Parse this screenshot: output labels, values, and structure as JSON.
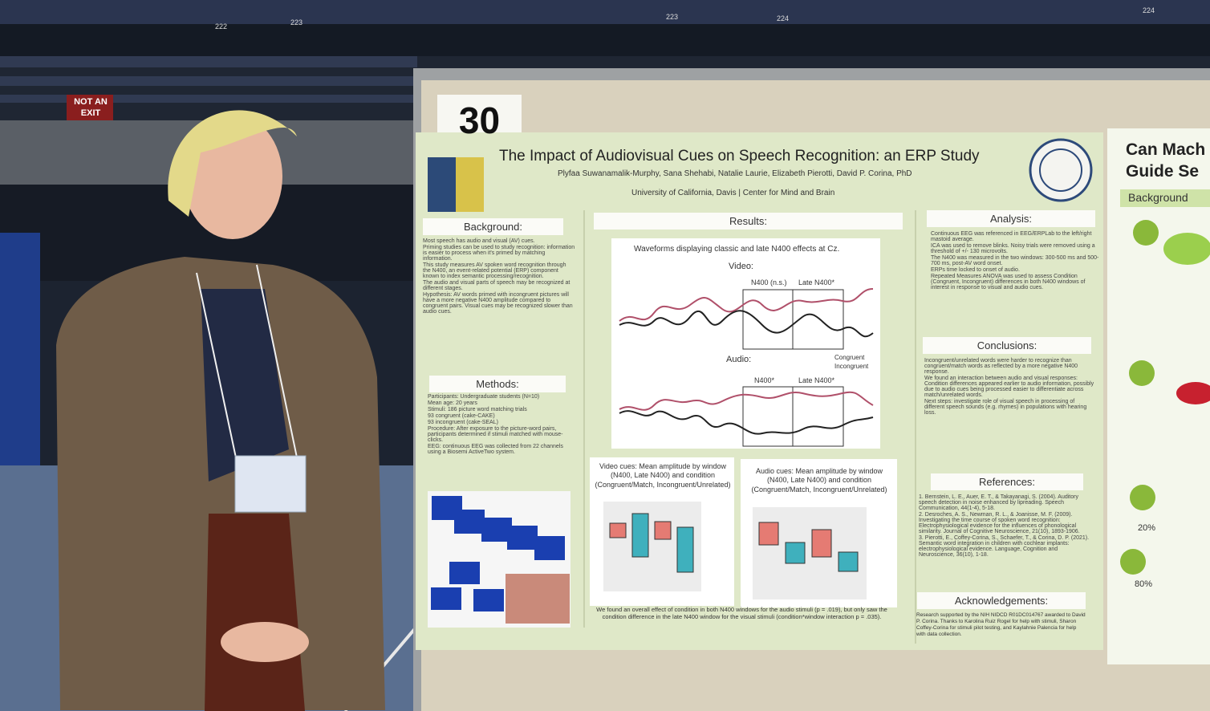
{
  "arena": {
    "exit_sign": "NOT AN EXIT",
    "section_numbers": [
      "222",
      "223",
      "223",
      "224",
      "224"
    ]
  },
  "board_number": "30",
  "poster": {
    "title": "The Impact of Audiovisual Cues on Speech Recognition: an ERP Study",
    "authors": "Plyfaa Suwanamalik-Murphy,  Sana Shehabi,  Natalie Laurie,  Elizabeth Pierotti,  David P. Corina, PhD",
    "affiliation": "University of California, Davis | Center for Mind and Brain",
    "background": {
      "heading": "Background:",
      "bullets": [
        "Most speech has audio and visual (AV) cues.",
        "Priming studies can be used to study recognition: information is easier to process when it's primed by matching information.",
        "This study measures AV spoken word recognition through the N400, an event-related potential (ERP) component known to index semantic processing/recognition.",
        "The audio and visual parts of speech may be recognized at different stages.",
        "Hypothesis: AV words primed with incongruent pictures will have a more negative N400 amplitude compared to congruent pairs. Visual cues may be recognized slower than audio cues."
      ]
    },
    "methods": {
      "heading": "Methods:",
      "items": [
        "Participants: Undergraduate students (N=10)",
        "Mean age: 20 years",
        "Stimuli: 186 picture word matching trials",
        "93 congruent (cake-CAKE)",
        "93 incongruent (cake-SEAL)",
        "Procedure: After exposure to the picture-word pairs, participants determined if stimuli matched with mouse-clicks.",
        "EEG: continuous EEG was collected from 22 channels using a Biosemi ActiveTwo system."
      ]
    },
    "results": {
      "heading": "Results:",
      "figure_title": "Waveforms displaying classic and late N400 effects at Cz.",
      "video_label": "Video:",
      "audio_label": "Audio:",
      "video_windows": [
        "N400 (n.s.)",
        "Late N400*"
      ],
      "audio_windows": [
        "N400*",
        "Late N400*"
      ],
      "legend": [
        "Congruent",
        "Incongruent"
      ],
      "video_cues": "Video cues: Mean amplitude by window (N400, Late N400) and condition (Congruent/Match, Incongruent/Unrelated)",
      "audio_cues": "Audio cues: Mean amplitude by window (N400, Late N400) and condition (Congruent/Match, Incongruent/Unrelated)",
      "summary": "We found an overall effect of condition in both N400 windows for the audio stimuli (p = .019), but only saw the condition difference in the late N400 window for the visual stimuli (condition*window interaction p = .035)."
    },
    "analysis": {
      "heading": "Analysis:",
      "bullets": [
        "Continuous EEG was referenced in EEG/ERPLab to the left/right mastoid average.",
        "ICA was used to remove blinks. Noisy trials were removed using a threshold of +/- 130 microvolts.",
        "The N400 was measured in the two windows: 300-500 ms and 500-700 ms, post-AV word onset.",
        "ERPs time locked to onset of audio.",
        "Repeated Measures ANOVA was used to assess Condition (Congruent, Incongruent) differences in both N400 windows of interest in response to visual and audio cues."
      ]
    },
    "conclusions": {
      "heading": "Conclusions:",
      "bullets": [
        "Incongruent/unrelated words were harder to recognize than congruent/match words as reflected by a more negative N400 response.",
        "We found an interaction between audio and visual responses: Condition differences appeared earlier to audio information, possibly due to audio cues being processed easier to differentiate across match/unrelated words.",
        "Next steps: investigate role of visual speech in processing of different speech sounds (e.g. rhymes) in populations with hearing loss."
      ]
    },
    "references": {
      "heading": "References:",
      "items": [
        "1. Bernstein, L. E., Auer, E. T., & Takayanagi, S. (2004). Auditory speech detection in noise enhanced by lipreading. Speech Communication, 44(1-4), 5-18.",
        "2. Desroches, A. S., Newman, R. L., & Joanisse, M. F. (2009). Investigating the time course of spoken word recognition: Electrophysiological evidence for the influences of phonological similarity. Journal of Cognitive Neuroscience, 21(10), 1893-1906.",
        "3. Pierotti, E., Coffey-Corina, S., Schaefer, T., & Corina, D. P. (2021). Semantic word integration in children with cochlear implants: electrophysiological evidence. Language, Cognition and Neuroscience, 36(10), 1-18."
      ]
    },
    "acknowledgements": {
      "heading": "Acknowledgements:",
      "text": "Research supported by the NIH NIDCD R01DC014767 awarded to David P. Corina. Thanks to Karolina Ruiz Rogel for help with stimuli, Sharon Coffey-Corina for stimuli pilot testing, and Kaylahnie Palencia for help with data collection."
    }
  },
  "neighbor_poster": {
    "title_lines": [
      "Can Mach",
      "Guide Se"
    ],
    "heading": "Background",
    "labels": [
      "20%",
      "80%"
    ]
  }
}
